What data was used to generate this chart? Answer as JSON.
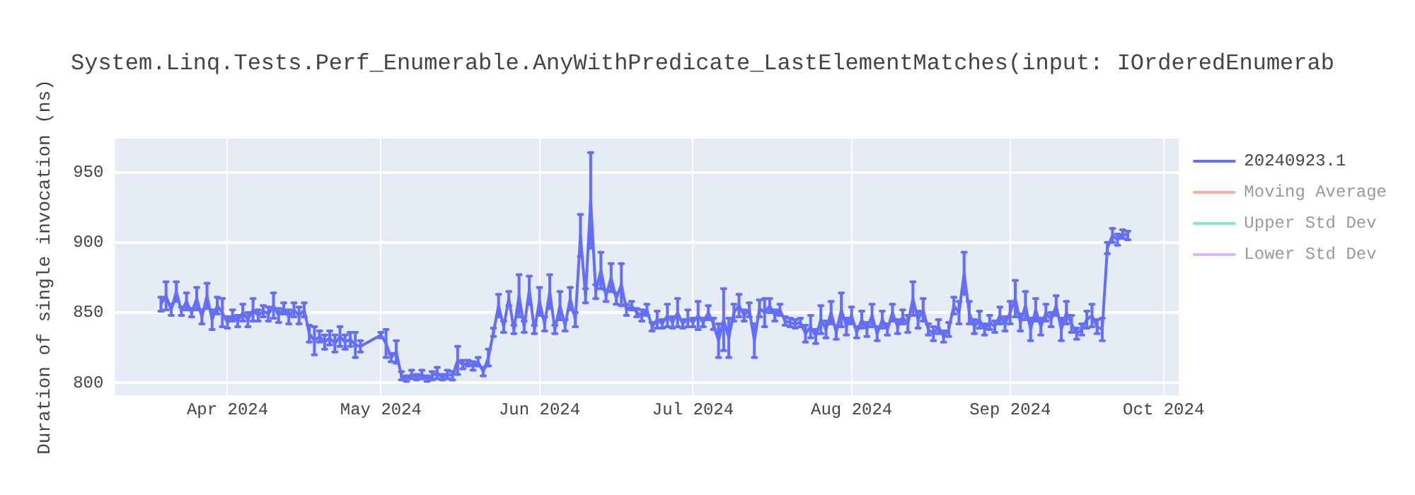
{
  "chart_data": {
    "type": "line",
    "title": "System.Linq.Tests.Perf_Enumerable.AnyWithPredicate_LastElementMatches(input: IOrderedEnumerab",
    "ylabel": "Duration of single invocation (ns)",
    "x": [
      "2024-03-19",
      "2024-03-20",
      "2024-03-21",
      "2024-03-22",
      "2024-03-23",
      "2024-03-24",
      "2024-03-25",
      "2024-03-26",
      "2024-03-27",
      "2024-03-28",
      "2024-03-29",
      "2024-03-30",
      "2024-03-31",
      "2024-04-01",
      "2024-04-02",
      "2024-04-03",
      "2024-04-04",
      "2024-04-05",
      "2024-04-06",
      "2024-04-07",
      "2024-04-08",
      "2024-04-09",
      "2024-04-10",
      "2024-04-11",
      "2024-04-12",
      "2024-04-13",
      "2024-04-14",
      "2024-04-15",
      "2024-04-16",
      "2024-04-17",
      "2024-04-18",
      "2024-04-19",
      "2024-04-20",
      "2024-04-21",
      "2024-04-22",
      "2024-04-23",
      "2024-04-24",
      "2024-04-25",
      "2024-04-26",
      "2024-04-27",
      "2024-05-01",
      "2024-05-02",
      "2024-05-03",
      "2024-05-04",
      "2024-05-05",
      "2024-05-06",
      "2024-05-07",
      "2024-05-08",
      "2024-05-09",
      "2024-05-10",
      "2024-05-11",
      "2024-05-12",
      "2024-05-13",
      "2024-05-14",
      "2024-05-15",
      "2024-05-16",
      "2024-05-17",
      "2024-05-18",
      "2024-05-19",
      "2024-05-20",
      "2024-05-21",
      "2024-05-22",
      "2024-05-23",
      "2024-05-24",
      "2024-05-25",
      "2024-05-26",
      "2024-05-27",
      "2024-05-28",
      "2024-05-29",
      "2024-05-30",
      "2024-05-31",
      "2024-06-01",
      "2024-06-02",
      "2024-06-03",
      "2024-06-04",
      "2024-06-05",
      "2024-06-06",
      "2024-06-07",
      "2024-06-08",
      "2024-06-09",
      "2024-06-10",
      "2024-06-11",
      "2024-06-12",
      "2024-06-13",
      "2024-06-14",
      "2024-06-15",
      "2024-06-16",
      "2024-06-17",
      "2024-06-18",
      "2024-06-19",
      "2024-06-20",
      "2024-06-21",
      "2024-06-22",
      "2024-06-23",
      "2024-06-24",
      "2024-06-25",
      "2024-06-26",
      "2024-06-27",
      "2024-06-28",
      "2024-06-29",
      "2024-06-30",
      "2024-07-01",
      "2024-07-02",
      "2024-07-03",
      "2024-07-04",
      "2024-07-05",
      "2024-07-06",
      "2024-07-07",
      "2024-07-08",
      "2024-07-09",
      "2024-07-10",
      "2024-07-11",
      "2024-07-12",
      "2024-07-13",
      "2024-07-14",
      "2024-07-15",
      "2024-07-16",
      "2024-07-17",
      "2024-07-18",
      "2024-07-19",
      "2024-07-20",
      "2024-07-21",
      "2024-07-22",
      "2024-07-23",
      "2024-07-24",
      "2024-07-25",
      "2024-07-26",
      "2024-07-27",
      "2024-07-28",
      "2024-07-29",
      "2024-07-30",
      "2024-07-31",
      "2024-08-01",
      "2024-08-02",
      "2024-08-03",
      "2024-08-04",
      "2024-08-05",
      "2024-08-06",
      "2024-08-07",
      "2024-08-08",
      "2024-08-09",
      "2024-08-10",
      "2024-08-11",
      "2024-08-12",
      "2024-08-13",
      "2024-08-14",
      "2024-08-15",
      "2024-08-16",
      "2024-08-17",
      "2024-08-18",
      "2024-08-19",
      "2024-08-20",
      "2024-08-21",
      "2024-08-22",
      "2024-08-23",
      "2024-08-24",
      "2024-08-25",
      "2024-08-26",
      "2024-08-27",
      "2024-08-28",
      "2024-08-29",
      "2024-08-30",
      "2024-08-31",
      "2024-09-01",
      "2024-09-02",
      "2024-09-03",
      "2024-09-04",
      "2024-09-05",
      "2024-09-06",
      "2024-09-07",
      "2024-09-08",
      "2024-09-09",
      "2024-09-10",
      "2024-09-11",
      "2024-09-12",
      "2024-09-13",
      "2024-09-14",
      "2024-09-15",
      "2024-09-16",
      "2024-09-17",
      "2024-09-18",
      "2024-09-19",
      "2024-09-20",
      "2024-09-21",
      "2024-09-22",
      "2024-09-23",
      "2024-09-24"
    ],
    "series": [
      {
        "name": "20240923.1",
        "color": "#636efa",
        "values": [
          856,
          862,
          852,
          865,
          851,
          858,
          850,
          860,
          847,
          862,
          845,
          855,
          850,
          843,
          848,
          844,
          850,
          845,
          852,
          848,
          851,
          849,
          855,
          848,
          853,
          847,
          852,
          848,
          852,
          835,
          830,
          833,
          829,
          832,
          828,
          833,
          829,
          831,
          827,
          826,
          834,
          828,
          818,
          822,
          805,
          803,
          806,
          804,
          806,
          803,
          805,
          807,
          804,
          806,
          805,
          816,
          813,
          814,
          812,
          815,
          808,
          818,
          836,
          855,
          840,
          860,
          838,
          862,
          840,
          866,
          838,
          858,
          842,
          865,
          838,
          855,
          841,
          860,
          845,
          905,
          862,
          930,
          865,
          880,
          862,
          875,
          860,
          870,
          852,
          855,
          850,
          848,
          852,
          840,
          845,
          842,
          848,
          843,
          850,
          842,
          846,
          843,
          848,
          843,
          850,
          842,
          830,
          845,
          832,
          850,
          855,
          848,
          852,
          830,
          853,
          850,
          855,
          848,
          852,
          844,
          843,
          842,
          843,
          835,
          840,
          833,
          845,
          838,
          850,
          836,
          852,
          840,
          848,
          836,
          845,
          838,
          848,
          835,
          845,
          838,
          850,
          840,
          847,
          842,
          860,
          845,
          852,
          838,
          835,
          840,
          833,
          838,
          855,
          850,
          878,
          850,
          840,
          845,
          838,
          843,
          840,
          848,
          842,
          850,
          860,
          843,
          855,
          838,
          852,
          840,
          850,
          845,
          855,
          838,
          850,
          842,
          835,
          838,
          845,
          848,
          840,
          838,
          896,
          905,
          902,
          906,
          905
        ],
        "errors": [
          5,
          10,
          4,
          7,
          3,
          6,
          3,
          8,
          5,
          9,
          7,
          6,
          10,
          4,
          4,
          4,
          6,
          5,
          8,
          4,
          4,
          5,
          9,
          5,
          4,
          5,
          5,
          6,
          5,
          6,
          10,
          4,
          5,
          5,
          6,
          7,
          5,
          5,
          9,
          4,
          2,
          10,
          3,
          8,
          3,
          2,
          3,
          2,
          3,
          2,
          3,
          4,
          2,
          3,
          3,
          10,
          3,
          2,
          3,
          3,
          3,
          6,
          3,
          8,
          4,
          5,
          3,
          15,
          4,
          10,
          3,
          10,
          5,
          12,
          3,
          10,
          4,
          8,
          5,
          15,
          5,
          34,
          5,
          13,
          4,
          10,
          4,
          15,
          4,
          3,
          3,
          4,
          4,
          3,
          6,
          3,
          8,
          4,
          10,
          3,
          6,
          3,
          10,
          3,
          5,
          4,
          12,
          22,
          14,
          6,
          8,
          4,
          5,
          12,
          6,
          10,
          5,
          4,
          4,
          3,
          3,
          3,
          3,
          6,
          8,
          5,
          10,
          6,
          8,
          5,
          12,
          6,
          6,
          4,
          6,
          5,
          8,
          5,
          6,
          4,
          6,
          5,
          5,
          6,
          12,
          6,
          8,
          4,
          5,
          5,
          4,
          5,
          6,
          8,
          15,
          8,
          5,
          6,
          4,
          5,
          4,
          6,
          5,
          8,
          13,
          6,
          10,
          8,
          8,
          6,
          6,
          5,
          7,
          8,
          8,
          6,
          4,
          4,
          6,
          8,
          5,
          8,
          4,
          5,
          4,
          3,
          3
        ]
      },
      {
        "name": "Moving Average",
        "color": "#ef553b",
        "values": [
          null,
          null,
          null,
          null,
          null,
          null,
          null,
          null,
          null,
          null,
          null,
          null,
          null,
          null,
          null,
          null,
          null,
          null,
          null,
          null,
          null,
          null,
          null,
          null,
          null,
          null,
          null,
          null,
          null,
          null,
          null,
          null,
          null,
          null,
          null,
          null,
          null,
          null,
          null,
          null,
          null,
          null,
          null,
          null,
          null,
          null,
          null,
          null,
          null,
          null,
          null,
          null,
          null,
          null,
          null,
          null,
          null,
          null,
          null,
          null,
          null,
          null,
          null,
          null,
          null,
          null,
          null,
          null,
          null,
          null,
          null,
          null,
          null,
          null,
          null,
          null,
          null,
          null,
          null,
          null,
          null,
          null,
          null,
          null,
          null,
          null,
          null,
          null,
          null,
          null,
          null,
          null,
          null,
          null,
          null,
          null,
          null,
          null,
          null,
          null,
          null,
          null,
          null,
          null,
          null,
          null,
          null,
          null,
          null,
          null,
          null,
          null,
          null,
          null,
          null,
          null,
          null,
          null,
          null,
          null,
          null,
          null,
          null,
          null,
          null,
          null,
          null,
          null,
          null,
          null,
          null,
          null,
          null,
          null,
          null,
          null,
          null,
          null,
          null,
          null,
          null,
          null,
          null,
          null,
          null,
          null,
          null,
          null,
          null,
          null,
          null,
          null,
          null,
          null,
          null,
          null,
          null,
          null,
          null,
          null,
          null,
          null,
          null,
          null,
          null,
          null,
          null,
          null,
          null,
          null,
          null,
          null,
          null,
          null,
          null,
          null,
          null,
          null,
          null,
          null,
          null,
          null,
          null,
          null,
          null,
          null,
          null
        ]
      },
      {
        "name": "Upper Std Dev",
        "color": "#00cc96",
        "values": [
          null,
          null,
          null,
          null,
          null,
          null,
          null,
          null,
          null,
          null,
          null,
          null,
          null,
          null,
          null,
          null,
          null,
          null,
          null,
          null,
          null,
          null,
          null,
          null,
          null,
          null,
          null,
          null,
          null,
          null,
          null,
          null,
          null,
          null,
          null,
          null,
          null,
          null,
          null,
          null,
          null,
          null,
          null,
          null,
          null,
          null,
          null,
          null,
          null,
          null,
          null,
          null,
          null,
          null,
          null,
          null,
          null,
          null,
          null,
          null,
          null,
          null,
          null,
          null,
          null,
          null,
          null,
          null,
          null,
          null,
          null,
          null,
          null,
          null,
          null,
          null,
          null,
          null,
          null,
          null,
          null,
          null,
          null,
          null,
          null,
          null,
          null,
          null,
          null,
          null,
          null,
          null,
          null,
          null,
          null,
          null,
          null,
          null,
          null,
          null,
          null,
          null,
          null,
          null,
          null,
          null,
          null,
          null,
          null,
          null,
          null,
          null,
          null,
          null,
          null,
          null,
          null,
          null,
          null,
          null,
          null,
          null,
          null,
          null,
          null,
          null,
          null,
          null,
          null,
          null,
          null,
          null,
          null,
          null,
          null,
          null,
          null,
          null,
          null,
          null,
          null,
          null,
          null,
          null,
          null,
          null,
          null,
          null,
          null,
          null,
          null,
          null,
          null,
          null,
          null,
          null,
          null,
          null,
          null,
          null,
          null,
          null,
          null,
          null,
          null,
          null,
          null,
          null,
          null,
          null,
          null,
          null,
          null,
          null,
          null,
          null,
          null,
          null,
          null,
          null,
          null,
          null,
          null,
          null,
          null,
          null,
          null
        ]
      },
      {
        "name": "Lower Std Dev",
        "color": "#ab63fa",
        "values": [
          null,
          null,
          null,
          null,
          null,
          null,
          null,
          null,
          null,
          null,
          null,
          null,
          null,
          null,
          null,
          null,
          null,
          null,
          null,
          null,
          null,
          null,
          null,
          null,
          null,
          null,
          null,
          null,
          null,
          null,
          null,
          null,
          null,
          null,
          null,
          null,
          null,
          null,
          null,
          null,
          null,
          null,
          null,
          null,
          null,
          null,
          null,
          null,
          null,
          null,
          null,
          null,
          null,
          null,
          null,
          null,
          null,
          null,
          null,
          null,
          null,
          null,
          null,
          null,
          null,
          null,
          null,
          null,
          null,
          null,
          null,
          null,
          null,
          null,
          null,
          null,
          null,
          null,
          null,
          null,
          null,
          null,
          null,
          null,
          null,
          null,
          null,
          null,
          null,
          null,
          null,
          null,
          null,
          null,
          null,
          null,
          null,
          null,
          null,
          null,
          null,
          null,
          null,
          null,
          null,
          null,
          null,
          null,
          null,
          null,
          null,
          null,
          null,
          null,
          null,
          null,
          null,
          null,
          null,
          null,
          null,
          null,
          null,
          null,
          null,
          null,
          null,
          null,
          null,
          null,
          null,
          null,
          null,
          null,
          null,
          null,
          null,
          null,
          null,
          null,
          null,
          null,
          null,
          null,
          null,
          null,
          null,
          null,
          null,
          null,
          null,
          null,
          null,
          null,
          null,
          null,
          null,
          null,
          null,
          null,
          null,
          null,
          null,
          null,
          null,
          null,
          null,
          null,
          null,
          null,
          null,
          null,
          null,
          null,
          null,
          null,
          null,
          null,
          null,
          null,
          null,
          null,
          null,
          null,
          null,
          null,
          null
        ]
      }
    ],
    "xlim": [
      "2024-03-10",
      "2024-10-04"
    ],
    "xticks": [
      {
        "value": "2024-04-01",
        "label": "Apr 2024"
      },
      {
        "value": "2024-05-01",
        "label": "May 2024"
      },
      {
        "value": "2024-06-01",
        "label": "Jun 2024"
      },
      {
        "value": "2024-07-01",
        "label": "Jul 2024"
      },
      {
        "value": "2024-08-01",
        "label": "Aug 2024"
      },
      {
        "value": "2024-09-01",
        "label": "Sep 2024"
      },
      {
        "value": "2024-10-01",
        "label": "Oct 2024"
      }
    ],
    "ylim": [
      791,
      974
    ],
    "yticks": [
      800,
      850,
      900,
      950
    ],
    "grid": true,
    "legend": "top right"
  }
}
